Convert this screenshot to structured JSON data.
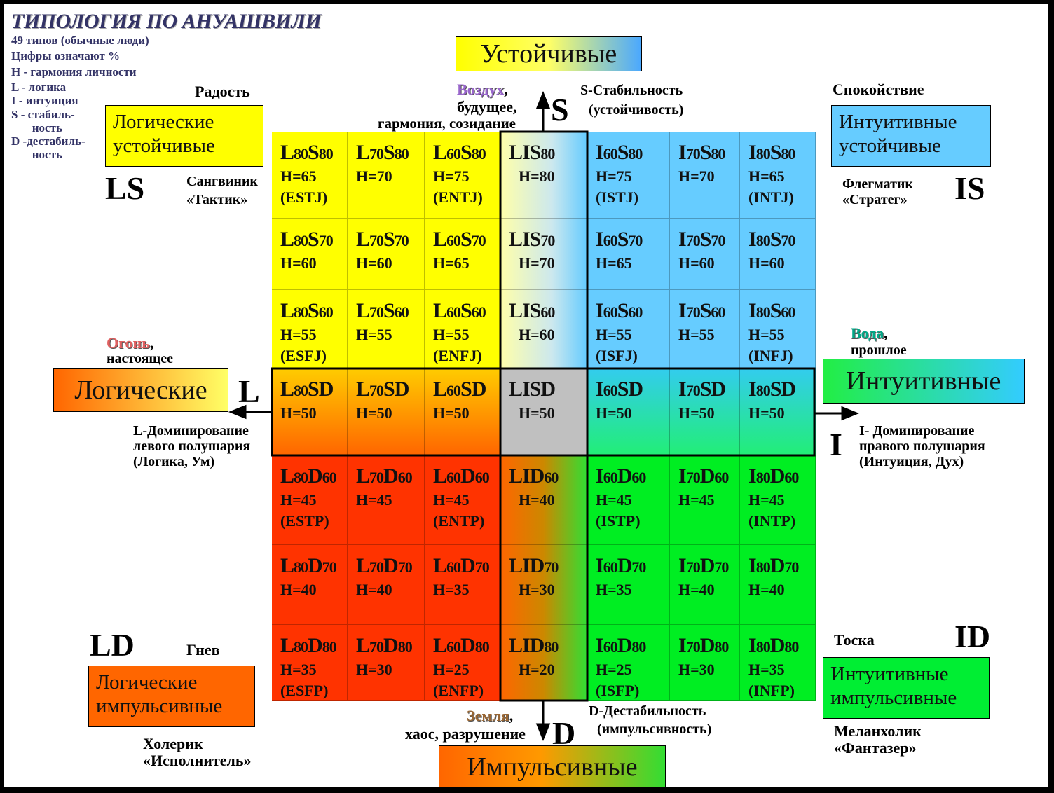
{
  "title": "ТИПОЛОГИЯ ПО АНУАШВИЛИ",
  "legend": [
    "49 типов (обычные люди)",
    "Цифры означают %",
    "H - гармония личности",
    "L - логика",
    "I -  интуиция",
    "S - стабиль-",
    "       ность",
    "D -дестабиль-",
    "       ность"
  ],
  "axes": {
    "top_box": "Устойчивые",
    "bottom_box": "Импульсивные",
    "left_box": "Логические",
    "right_box": "Интуитивные",
    "top_letter": "S",
    "bottom_letter": "D",
    "left_letter": "L",
    "right_letter": "I",
    "top_element": "Воздух",
    "top_element_rest": ",",
    "top_desc_1": "будущее,",
    "top_desc_2": "гармония, созидание",
    "top_right_1": "S-Стабильность",
    "top_right_2": "(устойчивость)",
    "bottom_element": "Земля",
    "bottom_element_rest": ",",
    "bottom_desc": "хаос, разрушение",
    "bottom_right_1": "D-Дестабильность",
    "bottom_right_2": "(импульсивность)",
    "left_element": "Огонь",
    "left_element_rest": ",",
    "left_desc": "настоящее",
    "left_dom_1": "L-Доминирование",
    "left_dom_2": "левого полушария",
    "left_dom_3": "(Логика, Ум)",
    "right_element": "Вода",
    "right_element_rest": ",",
    "right_desc": "прошлое",
    "right_dom_1": "I- Доминирование",
    "right_dom_2": "правого полушария",
    "right_dom_3": "(Интуиция, Дух)",
    "colors": {
      "air": "#9966cc",
      "fire": "#e06060",
      "water": "#00aa88",
      "earth": "#996633"
    }
  },
  "quadrants": {
    "ls": {
      "emotion": "Радость",
      "box_1": "Логические",
      "box_2": "устойчивые",
      "code": "LS",
      "temper": "Сангвиник",
      "role": "«Тактик»",
      "color": "#ffff00"
    },
    "is": {
      "emotion": "Спокойствие",
      "box_1": "Интуитивные",
      "box_2": "устойчивые",
      "code": "IS",
      "temper": "Флегматик",
      "role": "«Стратег»",
      "color": "#66ccff"
    },
    "ld": {
      "emotion": "Гнев",
      "box_1": "Логические",
      "box_2": "импульсивные",
      "code": "LD",
      "temper": "Холерик",
      "role": "«Исполнитель»",
      "color": "#ff6600"
    },
    "id": {
      "emotion": "Тоска",
      "box_1": "Интуитивные",
      "box_2": "импульсивные",
      "code": "ID",
      "temper": "Меланхолик",
      "role": "«Фантазер»",
      "color": "#00ee33"
    }
  },
  "grid": {
    "rows": [
      [
        {
          "a": "L",
          "an": "80",
          "b": "S",
          "bn": "80",
          "h": "H=65",
          "m": "(ESTJ)"
        },
        {
          "a": "L",
          "an": "70",
          "b": "S",
          "bn": "80",
          "h": "H=70",
          "m": ""
        },
        {
          "a": "L",
          "an": "60",
          "b": "S",
          "bn": "80",
          "h": "H=75",
          "m": "(ENTJ)"
        },
        {
          "a": "LIS",
          "an": "",
          "b": "",
          "bn": "80",
          "h": "H=80",
          "m": ""
        },
        {
          "a": "I",
          "an": "60",
          "b": "S",
          "bn": "80",
          "h": "H=75",
          "m": "(ISTJ)"
        },
        {
          "a": "I",
          "an": "70",
          "b": "S",
          "bn": "80",
          "h": "H=70",
          "m": ""
        },
        {
          "a": "I",
          "an": "80",
          "b": "S",
          "bn": "80",
          "h": "H=65",
          "m": "(INTJ)"
        }
      ],
      [
        {
          "a": "L",
          "an": "80",
          "b": "S",
          "bn": "70",
          "h": "H=60",
          "m": ""
        },
        {
          "a": "L",
          "an": "70",
          "b": "S",
          "bn": "70",
          "h": "H=60",
          "m": ""
        },
        {
          "a": "L",
          "an": "60",
          "b": "S",
          "bn": "70",
          "h": "H=65",
          "m": ""
        },
        {
          "a": "LIS",
          "an": "",
          "b": "",
          "bn": "70",
          "h": "H=70",
          "m": ""
        },
        {
          "a": "I",
          "an": "60",
          "b": "S",
          "bn": "70",
          "h": "H=65",
          "m": ""
        },
        {
          "a": "I",
          "an": "70",
          "b": "S",
          "bn": "70",
          "h": "H=60",
          "m": ""
        },
        {
          "a": "I",
          "an": "80",
          "b": "S",
          "bn": "70",
          "h": "H=60",
          "m": ""
        }
      ],
      [
        {
          "a": "L",
          "an": "80",
          "b": "S",
          "bn": "60",
          "h": "H=55",
          "m": "(ESFJ)"
        },
        {
          "a": "L",
          "an": "70",
          "b": "S",
          "bn": "60",
          "h": "H=55",
          "m": ""
        },
        {
          "a": "L",
          "an": "60",
          "b": "S",
          "bn": "60",
          "h": "H=55",
          "m": "(ENFJ)"
        },
        {
          "a": "LIS",
          "an": "",
          "b": "",
          "bn": "60",
          "h": "H=60",
          "m": ""
        },
        {
          "a": "I",
          "an": "60",
          "b": "S",
          "bn": "60",
          "h": "H=55",
          "m": "(ISFJ)"
        },
        {
          "a": "I",
          "an": "70",
          "b": "S",
          "bn": "60",
          "h": "H=55",
          "m": ""
        },
        {
          "a": "I",
          "an": "80",
          "b": "S",
          "bn": "60",
          "h": "H=55",
          "m": "(INFJ)"
        }
      ],
      [
        {
          "a": "L",
          "an": "80",
          "b": "SD",
          "bn": "",
          "h": "H=50",
          "m": ""
        },
        {
          "a": "L",
          "an": "70",
          "b": "SD",
          "bn": "",
          "h": "H=50",
          "m": ""
        },
        {
          "a": "L",
          "an": "60",
          "b": "SD",
          "bn": "",
          "h": "H=50",
          "m": ""
        },
        {
          "a": "LISD",
          "an": "",
          "b": "",
          "bn": "",
          "h": "H=50",
          "m": ""
        },
        {
          "a": "I",
          "an": "60",
          "b": "SD",
          "bn": "",
          "h": "H=50",
          "m": ""
        },
        {
          "a": "I",
          "an": "70",
          "b": "SD",
          "bn": "",
          "h": "H=50",
          "m": ""
        },
        {
          "a": "I",
          "an": "80",
          "b": "SD",
          "bn": "",
          "h": "H=50",
          "m": ""
        }
      ],
      [
        {
          "a": "L",
          "an": "80",
          "b": "D",
          "bn": "60",
          "h": "H=45",
          "m": "(ESTP)"
        },
        {
          "a": "L",
          "an": "70",
          "b": "D",
          "bn": "60",
          "h": "H=45",
          "m": ""
        },
        {
          "a": "L",
          "an": "60",
          "b": "D",
          "bn": "60",
          "h": "H=45",
          "m": "(ENTP)"
        },
        {
          "a": "LID",
          "an": "",
          "b": "",
          "bn": "60",
          "h": "H=40",
          "m": ""
        },
        {
          "a": "I",
          "an": "60",
          "b": "D",
          "bn": "60",
          "h": "H=45",
          "m": "(ISTP)"
        },
        {
          "a": "I",
          "an": "70",
          "b": "D",
          "bn": "60",
          "h": "H=45",
          "m": ""
        },
        {
          "a": "I",
          "an": "80",
          "b": "D",
          "bn": "60",
          "h": "H=45",
          "m": "(INTP)"
        }
      ],
      [
        {
          "a": "L",
          "an": "80",
          "b": "D",
          "bn": "70",
          "h": "H=40",
          "m": ""
        },
        {
          "a": "L",
          "an": "70",
          "b": "D",
          "bn": "70",
          "h": "H=40",
          "m": ""
        },
        {
          "a": "L",
          "an": "60",
          "b": "D",
          "bn": "70",
          "h": "H=35",
          "m": ""
        },
        {
          "a": "LID",
          "an": "",
          "b": "",
          "bn": "70",
          "h": "H=30",
          "m": ""
        },
        {
          "a": "I",
          "an": "60",
          "b": "D",
          "bn": "70",
          "h": "H=35",
          "m": ""
        },
        {
          "a": "I",
          "an": "70",
          "b": "D",
          "bn": "70",
          "h": "H=40",
          "m": ""
        },
        {
          "a": "I",
          "an": "80",
          "b": "D",
          "bn": "70",
          "h": "H=40",
          "m": ""
        }
      ],
      [
        {
          "a": "L",
          "an": "80",
          "b": "D",
          "bn": "80",
          "h": "H=35",
          "m": "(ESFP)"
        },
        {
          "a": "L",
          "an": "70",
          "b": "D",
          "bn": "80",
          "h": "H=30",
          "m": ""
        },
        {
          "a": "L",
          "an": "60",
          "b": "D",
          "bn": "80",
          "h": "H=25",
          "m": "(ENFP)"
        },
        {
          "a": "LID",
          "an": "",
          "b": "",
          "bn": "80",
          "h": "H=20",
          "m": ""
        },
        {
          "a": "I",
          "an": "60",
          "b": "D",
          "bn": "80",
          "h": "H=25",
          "m": "(ISFP)"
        },
        {
          "a": "I",
          "an": "70",
          "b": "D",
          "bn": "80",
          "h": "H=30",
          "m": ""
        },
        {
          "a": "I",
          "an": "80",
          "b": "D",
          "bn": "80",
          "h": "H=35",
          "m": "(INFP)"
        }
      ]
    ]
  }
}
